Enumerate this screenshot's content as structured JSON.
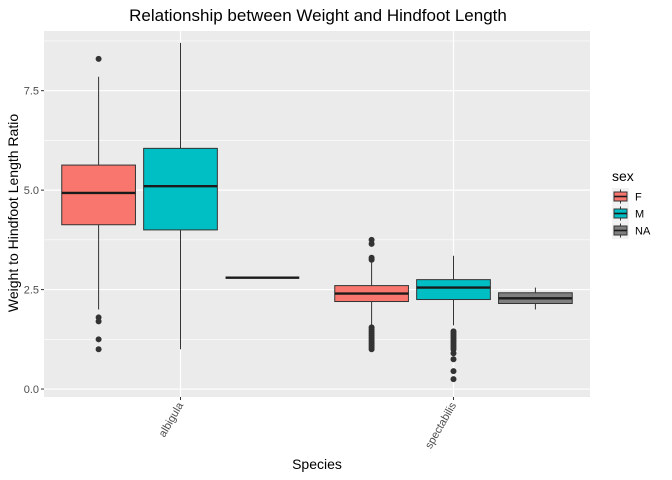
{
  "chart_data": {
    "type": "boxplot",
    "title": "Relationship between Weight and Hindfoot Length",
    "xlabel": "Species",
    "ylabel": "Weight to Hindfoot Length Ratio",
    "categories": [
      "albigula",
      "spectabilis"
    ],
    "ylim": [
      -0.2,
      9.0
    ],
    "yticks": [
      0.0,
      2.5,
      5.0,
      7.5
    ],
    "ytick_labels": [
      "0.0",
      "2.5",
      "5.0",
      "7.5"
    ],
    "x_tick_rotation": -60,
    "grid": true,
    "legend": {
      "title": "sex",
      "placement": "right",
      "entries": [
        {
          "label": "F",
          "color": "#F8766D"
        },
        {
          "label": "M",
          "color": "#00BFC4"
        },
        {
          "label": "NA",
          "color": "#7F7F7F"
        }
      ]
    },
    "series": [
      {
        "name": "F",
        "color": "#F8766D",
        "boxes": [
          {
            "category": "albigula",
            "min": 2.0,
            "q1": 4.13,
            "median": 4.93,
            "q3": 5.63,
            "max": 7.85,
            "outliers": [
              8.3,
              1.8,
              1.7,
              1.25,
              1.0
            ]
          },
          {
            "category": "spectabilis",
            "min": 1.6,
            "q1": 2.2,
            "median": 2.4,
            "q3": 2.6,
            "max": 3.2,
            "outliers": [
              3.75,
              3.65,
              3.3,
              3.25,
              1.55,
              1.5,
              1.45,
              1.4,
              1.35,
              1.3,
              1.25,
              1.2,
              1.15,
              1.1,
              1.05,
              1.0
            ]
          }
        ]
      },
      {
        "name": "M",
        "color": "#00BFC4",
        "boxes": [
          {
            "category": "albigula",
            "min": 1.0,
            "q1": 4.0,
            "median": 5.1,
            "q3": 6.05,
            "max": 8.7,
            "outliers": []
          },
          {
            "category": "spectabilis",
            "min": 1.6,
            "q1": 2.25,
            "median": 2.55,
            "q3": 2.75,
            "max": 3.35,
            "outliers": [
              1.45,
              1.4,
              1.35,
              1.3,
              1.25,
              1.2,
              1.15,
              1.1,
              1.05,
              1.0,
              0.9,
              0.75,
              0.45,
              0.25
            ]
          }
        ]
      },
      {
        "name": "NA",
        "color": "#7F7F7F",
        "boxes": [
          {
            "category": "albigula",
            "min": 2.8,
            "q1": 2.8,
            "median": 2.8,
            "q3": 2.8,
            "max": 2.8,
            "outliers": []
          },
          {
            "category": "spectabilis",
            "min": 2.0,
            "q1": 2.15,
            "median": 2.28,
            "q3": 2.42,
            "max": 2.55,
            "outliers": []
          }
        ]
      }
    ]
  }
}
